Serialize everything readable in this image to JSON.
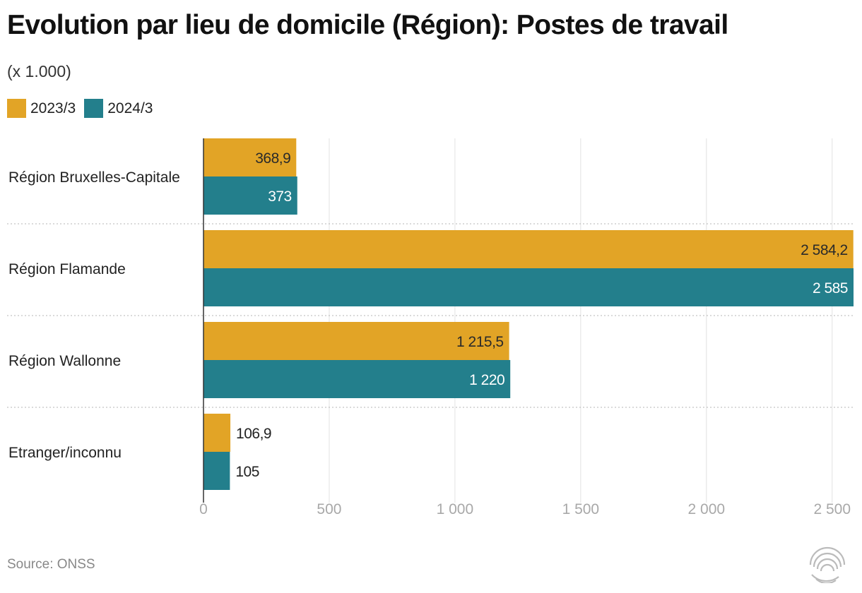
{
  "title": "Evolution par lieu de domicile (Région): Postes de travail",
  "subtitle": "(x 1.000)",
  "source": "Source: ONSS",
  "colors": {
    "series_2023": "#E2A426",
    "series_2024": "#237F8C"
  },
  "chart_data": {
    "type": "bar",
    "orientation": "horizontal",
    "title": "Evolution par lieu de domicile (Région): Postes de travail",
    "subtitle": "(x 1.000)",
    "categories": [
      "Région Bruxelles-Capitale",
      "Région Flamande",
      "Région Wallonne",
      "Etranger/inconnu"
    ],
    "series": [
      {
        "name": "2023/3",
        "values": [
          368.9,
          2584.2,
          1215.5,
          106.9
        ],
        "labels": [
          "368,9",
          "2 584,2",
          "1 215,5",
          "106,9"
        ]
      },
      {
        "name": "2024/3",
        "values": [
          373,
          2585,
          1220,
          105
        ],
        "labels": [
          "373",
          "2 585",
          "1 220",
          "105"
        ]
      }
    ],
    "xlim": [
      0,
      2585
    ],
    "xticks": [
      0,
      500,
      1000,
      1500,
      2000,
      2500
    ],
    "xtick_labels": [
      "0",
      "500",
      "1 000",
      "1 500",
      "2 000",
      "2 500"
    ],
    "grid": true,
    "legend_position": "top-left"
  }
}
